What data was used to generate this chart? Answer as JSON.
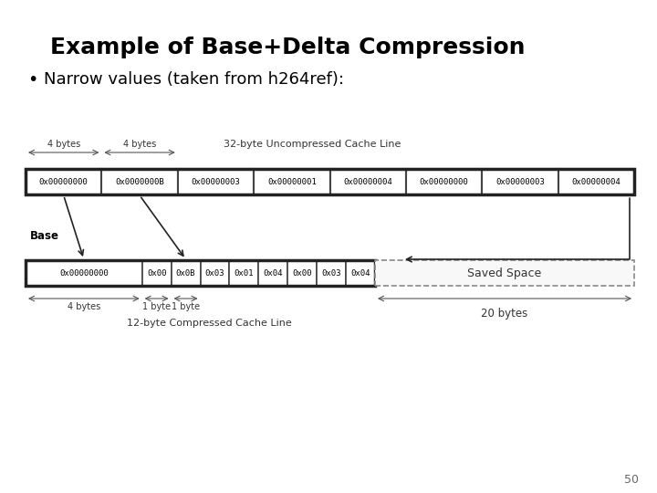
{
  "title": "Example of Base+Delta Compression",
  "bullet": "Narrow values (taken from h264ref):",
  "page_number": "50",
  "bg_color": "#ffffff",
  "uncompressed_label": "32-byte Uncompressed Cache Line",
  "uncompressed_cells": [
    "0x00000000",
    "0x0000000B",
    "0x00000003",
    "0x00000001",
    "0x00000004",
    "0x00000000",
    "0x00000003",
    "0x00000004"
  ],
  "compressed_label": "12-byte Compressed Cache Line",
  "compressed_cells_left": [
    "0x00000000",
    "0x00",
    "0x0B",
    "0x03",
    "0x01",
    "0x04",
    "0x00",
    "0x03",
    "0x04"
  ],
  "compressed_weights": [
    4,
    1,
    1,
    1,
    1,
    1,
    1,
    1,
    1
  ],
  "saved_space_label": "Saved Space",
  "base_label": "Base",
  "20bytes_label": "20 bytes"
}
